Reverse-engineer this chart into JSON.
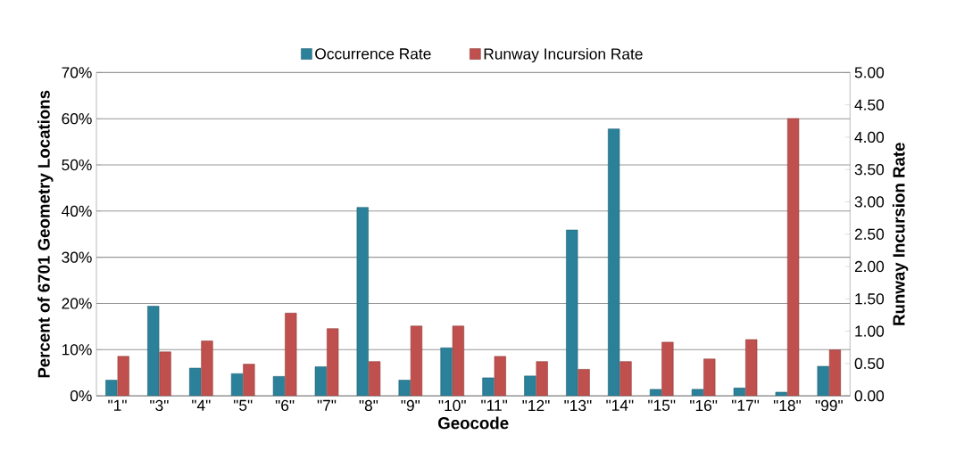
{
  "chart_data": {
    "type": "bar",
    "categories": [
      "\"1\"",
      "\"3\"",
      "\"4\"",
      "\"5\"",
      "\"6\"",
      "\"7\"",
      "\"8\"",
      "\"9\"",
      "\"10\"",
      "\"11\"",
      "\"12\"",
      "\"13\"",
      "\"14\"",
      "\"15\"",
      "\"16\"",
      "\"17\"",
      "\"18\"",
      "\"99\""
    ],
    "series": [
      {
        "name": "Occurrence Rate",
        "color": "#2a8199",
        "values": [
          3.4,
          19.4,
          6.0,
          4.8,
          4.2,
          6.3,
          40.8,
          3.4,
          10.4,
          3.9,
          4.3,
          35.9,
          57.8,
          1.4,
          1.4,
          1.7,
          0.8,
          6.4
        ]
      },
      {
        "name": "Runway Incursion Rate",
        "color": "#c0504d",
        "axis": "y2",
        "values": [
          0.61,
          0.68,
          0.85,
          0.49,
          1.28,
          1.04,
          0.53,
          1.08,
          1.08,
          0.61,
          0.53,
          0.41,
          0.53,
          0.83,
          0.57,
          0.87,
          4.29,
          0.71
        ]
      }
    ],
    "xlabel": "Geocode",
    "ylabel": "Percent of 6701 Geometry Locations",
    "y2label": "Runway Incursion Rate",
    "ylim": [
      0,
      70
    ],
    "yticks": [
      {
        "value": 0,
        "label": "0%"
      },
      {
        "value": 10,
        "label": "10%"
      },
      {
        "value": 20,
        "label": "20%"
      },
      {
        "value": 30,
        "label": "30%"
      },
      {
        "value": 40,
        "label": "40%"
      },
      {
        "value": 50,
        "label": "50%"
      },
      {
        "value": 60,
        "label": "60%"
      },
      {
        "value": 70,
        "label": "70%"
      }
    ],
    "y2lim": [
      0,
      5
    ],
    "y2ticks": [
      {
        "value": 0,
        "label": "0.00"
      },
      {
        "value": 0.5,
        "label": "0.50"
      },
      {
        "value": 1,
        "label": "1.00"
      },
      {
        "value": 1.5,
        "label": "1.50"
      },
      {
        "value": 2,
        "label": "2.00"
      },
      {
        "value": 2.5,
        "label": "2.50"
      },
      {
        "value": 3,
        "label": "3.00"
      },
      {
        "value": 3.5,
        "label": "3.50"
      },
      {
        "value": 4,
        "label": "4.00"
      },
      {
        "value": 4.5,
        "label": "4.50"
      },
      {
        "value": 5,
        "label": "5.00"
      }
    ],
    "grid": "y",
    "legend": "top"
  }
}
